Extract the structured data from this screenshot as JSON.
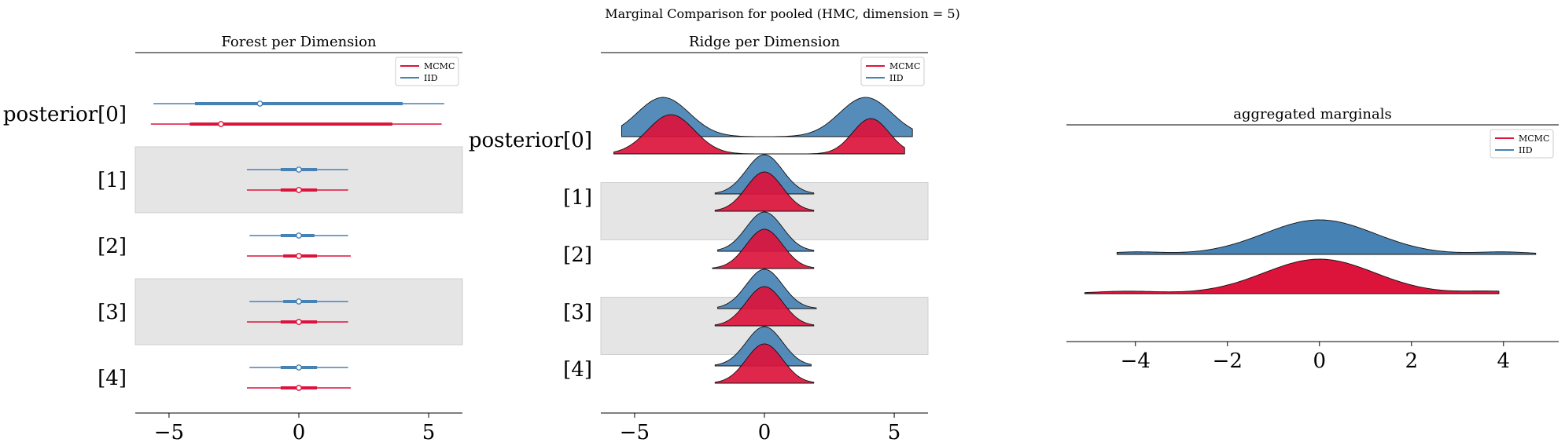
{
  "figure": {
    "suptitle": "Marginal Comparison for pooled (HMC, dimension = 5)"
  },
  "colors": {
    "mcmc": "#dc143c",
    "iid": "#4682b4",
    "band": "#e5e5e5"
  },
  "chart_data": [
    {
      "type": "forest",
      "title": "Forest per Dimension",
      "xlim": [
        -6.3,
        6.3
      ],
      "xticks": [
        -5,
        0,
        5
      ],
      "row_labels": [
        "posterior[0]",
        "[1]",
        "[2]",
        "[3]",
        "[4]"
      ],
      "legend": {
        "placement": "top-right",
        "entries": [
          "MCMC",
          "IID"
        ]
      },
      "series": [
        {
          "name": "IID",
          "rows": [
            {
              "median": -1.5,
              "hdi50": [
                -4.0,
                4.0
              ],
              "hdi94": [
                -5.6,
                5.6
              ]
            },
            {
              "median": 0.0,
              "hdi50": [
                -0.7,
                0.7
              ],
              "hdi94": [
                -2.0,
                1.9
              ]
            },
            {
              "median": 0.0,
              "hdi50": [
                -0.7,
                0.6
              ],
              "hdi94": [
                -1.9,
                1.9
              ]
            },
            {
              "median": 0.0,
              "hdi50": [
                -0.6,
                0.7
              ],
              "hdi94": [
                -1.9,
                1.9
              ]
            },
            {
              "median": 0.0,
              "hdi50": [
                -0.7,
                0.7
              ],
              "hdi94": [
                -1.9,
                1.9
              ]
            }
          ]
        },
        {
          "name": "MCMC",
          "rows": [
            {
              "median": -3.0,
              "hdi50": [
                -4.2,
                3.6
              ],
              "hdi94": [
                -5.7,
                5.5
              ]
            },
            {
              "median": 0.0,
              "hdi50": [
                -0.7,
                0.7
              ],
              "hdi94": [
                -2.0,
                1.9
              ]
            },
            {
              "median": 0.0,
              "hdi50": [
                -0.6,
                0.7
              ],
              "hdi94": [
                -2.0,
                2.0
              ]
            },
            {
              "median": 0.0,
              "hdi50": [
                -0.7,
                0.7
              ],
              "hdi94": [
                -2.0,
                1.9
              ]
            },
            {
              "median": 0.0,
              "hdi50": [
                -0.7,
                0.7
              ],
              "hdi94": [
                -2.0,
                2.0
              ]
            }
          ]
        }
      ]
    },
    {
      "type": "ridge",
      "title": "Ridge per Dimension",
      "xlim": [
        -6.3,
        6.3
      ],
      "xticks": [
        -5,
        0,
        5
      ],
      "row_labels": [
        "posterior[0]",
        "[1]",
        "[2]",
        "[3]",
        "[4]"
      ],
      "legend": {
        "placement": "top-right",
        "entries": [
          "MCMC",
          "IID"
        ]
      },
      "series": [
        {
          "name": "IID",
          "rows": [
            {
              "range": [
                -5.5,
                5.7
              ],
              "modes": [
                [
                  -3.9,
                  1.0,
                  1.0
                ],
                [
                  3.9,
                  1.0,
                  1.0
                ]
              ]
            },
            {
              "range": [
                -1.9,
                1.9
              ],
              "modes": [
                [
                  0.0,
                  0.7,
                  1.0
                ]
              ]
            },
            {
              "range": [
                -1.8,
                1.9
              ],
              "modes": [
                [
                  0.0,
                  0.7,
                  1.0
                ]
              ]
            },
            {
              "range": [
                -1.8,
                2.0
              ],
              "modes": [
                [
                  0.0,
                  0.7,
                  1.0
                ]
              ]
            },
            {
              "range": [
                -1.9,
                1.8
              ],
              "modes": [
                [
                  0.0,
                  0.7,
                  1.0
                ]
              ]
            }
          ]
        },
        {
          "name": "MCMC",
          "rows": [
            {
              "range": [
                -5.8,
                5.4
              ],
              "modes": [
                [
                  -3.6,
                  0.9,
                  1.0
                ],
                [
                  4.1,
                  0.7,
                  0.9
                ]
              ]
            },
            {
              "range": [
                -1.9,
                1.9
              ],
              "modes": [
                [
                  0.0,
                  0.7,
                  1.0
                ]
              ]
            },
            {
              "range": [
                -2.0,
                1.9
              ],
              "modes": [
                [
                  0.0,
                  0.7,
                  1.0
                ]
              ]
            },
            {
              "range": [
                -1.9,
                1.9
              ],
              "modes": [
                [
                  0.0,
                  0.7,
                  1.0
                ]
              ]
            },
            {
              "range": [
                -1.9,
                1.9
              ],
              "modes": [
                [
                  0.0,
                  0.7,
                  1.0
                ]
              ]
            }
          ]
        }
      ]
    },
    {
      "type": "ridge",
      "title": "aggregated marginals",
      "xlim": [
        -5.5,
        5.2
      ],
      "xticks": [
        -4,
        -2,
        0,
        2,
        4
      ],
      "legend": {
        "placement": "top-right",
        "entries": [
          "MCMC",
          "IID"
        ]
      },
      "series": [
        {
          "name": "IID",
          "range": [
            -4.4,
            4.7
          ],
          "modes": [
            [
              0.0,
              1.2,
              1.0
            ],
            [
              -4.0,
              0.6,
              0.07
            ],
            [
              4.0,
              0.6,
              0.07
            ]
          ]
        },
        {
          "name": "MCMC",
          "range": [
            -5.1,
            3.9
          ],
          "modes": [
            [
              0.0,
              1.2,
              1.0
            ],
            [
              -4.2,
              0.7,
              0.07
            ],
            [
              3.7,
              0.6,
              0.07
            ]
          ]
        }
      ]
    }
  ]
}
